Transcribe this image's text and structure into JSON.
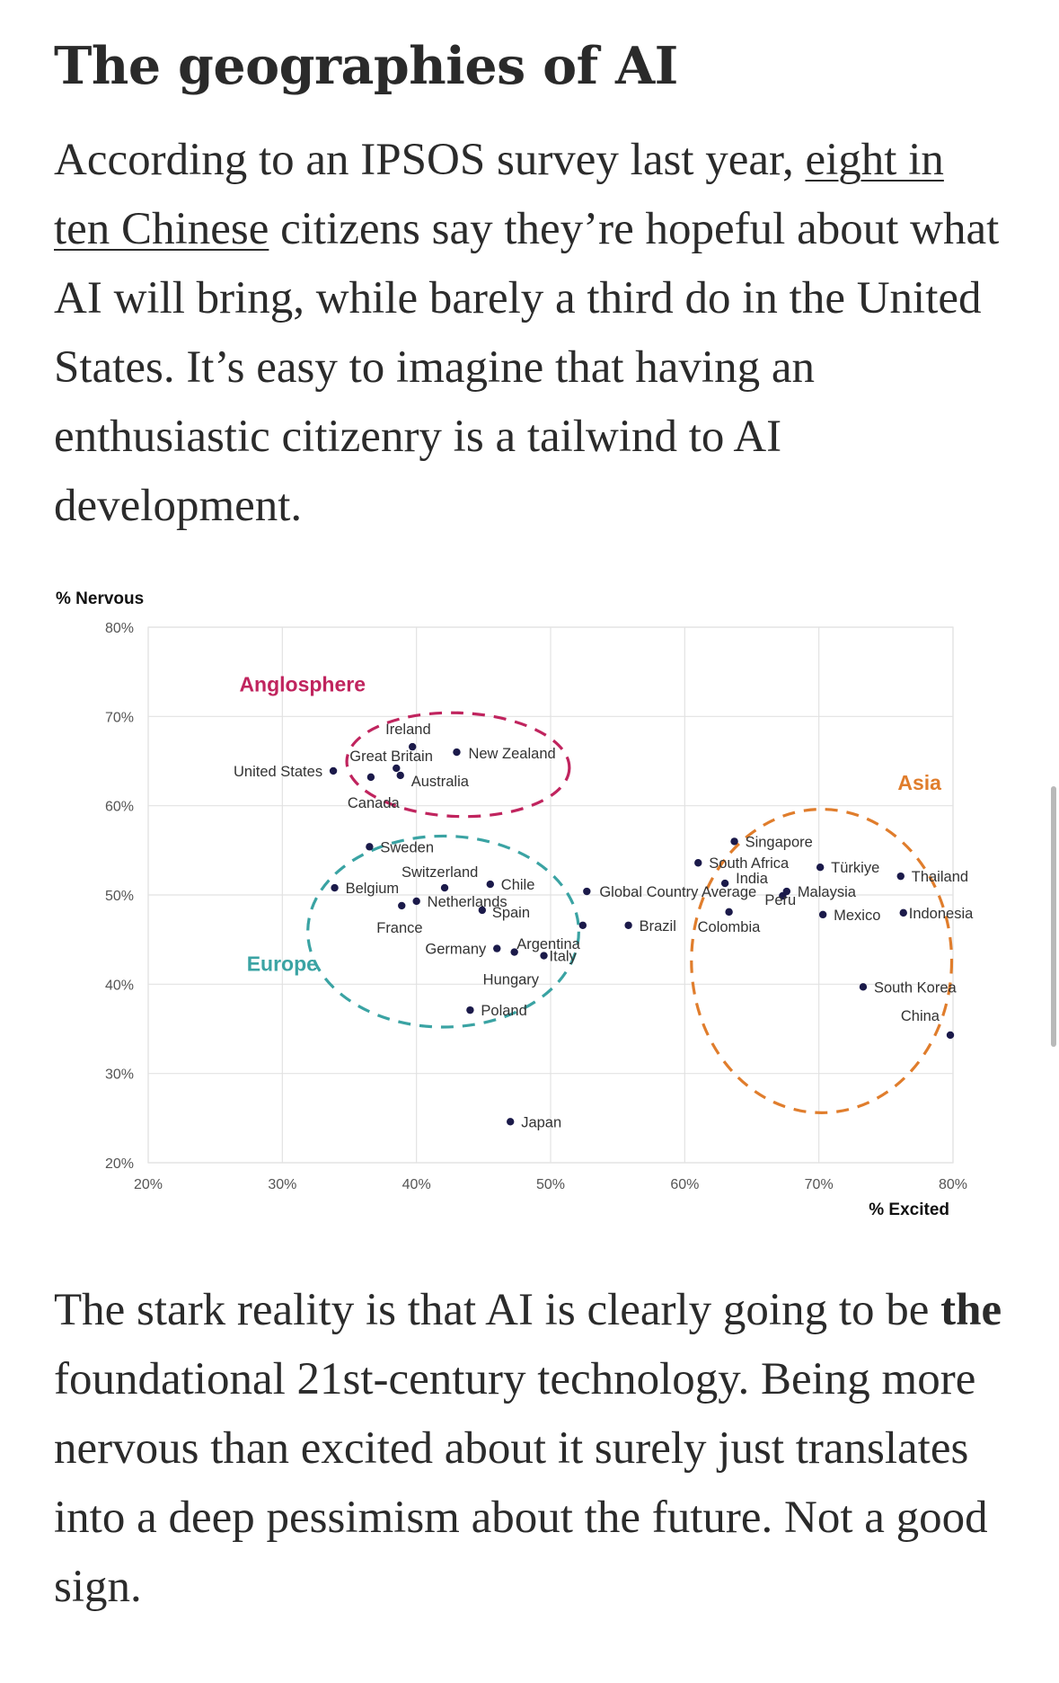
{
  "article": {
    "heading": "The geographies of AI",
    "para1": {
      "before": "According to an IPSOS survey last year, ",
      "link": "eight in ten Chinese",
      "after": " citizens say they’re hopeful about what AI will bring, while barely a third do in the United States. It’s easy to imagine that having an enthusiastic citizenry is a tailwind to AI development."
    },
    "para2": {
      "before": "The stark reality is that AI is clearly going to be ",
      "bold": "the",
      "after": " foundational 21st-century technology. Being more nervous than excited about it surely just translates into a deep pessimism about the future. Not a good sign."
    }
  },
  "chart_data": {
    "type": "scatter",
    "xlabel": "% Excited",
    "ylabel": "% Nervous",
    "xlim": [
      20,
      80
    ],
    "ylim": [
      20,
      80
    ],
    "xticks": [
      20,
      30,
      40,
      50,
      60,
      70,
      80
    ],
    "yticks": [
      20,
      30,
      40,
      50,
      60,
      70,
      80
    ],
    "x_tick_labels": [
      "20%",
      "30%",
      "40%",
      "50%",
      "60%",
      "70%",
      "80%"
    ],
    "y_tick_labels": [
      "20%",
      "30%",
      "40%",
      "50%",
      "60%",
      "70%",
      "80%"
    ],
    "grid": true,
    "point_color": "#1b1a4a",
    "points": [
      {
        "label": "United States",
        "x": 33.8,
        "y": 63.9
      },
      {
        "label": "Canada",
        "x": 36.6,
        "y": 63.2
      },
      {
        "label": "Great Britain",
        "x": 38.5,
        "y": 64.2
      },
      {
        "label": "Australia",
        "x": 38.8,
        "y": 63.4
      },
      {
        "label": "Ireland",
        "x": 39.7,
        "y": 66.6
      },
      {
        "label": "New Zealand",
        "x": 43.0,
        "y": 66.0
      },
      {
        "label": "Sweden",
        "x": 36.5,
        "y": 55.4
      },
      {
        "label": "Belgium",
        "x": 33.9,
        "y": 50.8
      },
      {
        "label": "Switzerland",
        "x": 42.1,
        "y": 50.8
      },
      {
        "label": "Chile",
        "x": 45.5,
        "y": 51.2
      },
      {
        "label": "France",
        "x": 38.9,
        "y": 48.8
      },
      {
        "label": "Netherlands",
        "x": 40.0,
        "y": 49.3
      },
      {
        "label": "Spain",
        "x": 44.9,
        "y": 48.3
      },
      {
        "label": "Germany",
        "x": 46.0,
        "y": 44.0
      },
      {
        "label": "Hungary",
        "x": 47.3,
        "y": 43.6
      },
      {
        "label": "Argentina",
        "x": 52.4,
        "y": 46.6
      },
      {
        "label": "Italy",
        "x": 49.5,
        "y": 43.2
      },
      {
        "label": "Poland",
        "x": 44.0,
        "y": 37.1
      },
      {
        "label": "Japan",
        "x": 47.0,
        "y": 24.6
      },
      {
        "label": "Global Country Average",
        "x": 52.7,
        "y": 50.4
      },
      {
        "label": "Brazil",
        "x": 55.8,
        "y": 46.6
      },
      {
        "label": "Singapore",
        "x": 63.7,
        "y": 56.0
      },
      {
        "label": "South Africa",
        "x": 61.0,
        "y": 53.6
      },
      {
        "label": "India",
        "x": 63.0,
        "y": 51.3
      },
      {
        "label": "Colombia",
        "x": 63.3,
        "y": 48.1
      },
      {
        "label": "Türkiye",
        "x": 70.1,
        "y": 53.1
      },
      {
        "label": "Malaysia",
        "x": 67.6,
        "y": 50.4
      },
      {
        "label": "Peru",
        "x": 67.3,
        "y": 49.9
      },
      {
        "label": "Mexico",
        "x": 70.3,
        "y": 47.8
      },
      {
        "label": "Thailand",
        "x": 76.1,
        "y": 52.1
      },
      {
        "label": "Indonesia",
        "x": 76.3,
        "y": 48.0
      },
      {
        "label": "South Korea",
        "x": 73.3,
        "y": 39.7
      },
      {
        "label": "China",
        "x": 79.8,
        "y": 34.3
      }
    ],
    "groups": [
      {
        "name": "Anglosphere",
        "color": "#c0245e"
      },
      {
        "name": "Europe",
        "color": "#3aa3a3"
      },
      {
        "name": "Asia",
        "color": "#e07d2c"
      }
    ]
  }
}
